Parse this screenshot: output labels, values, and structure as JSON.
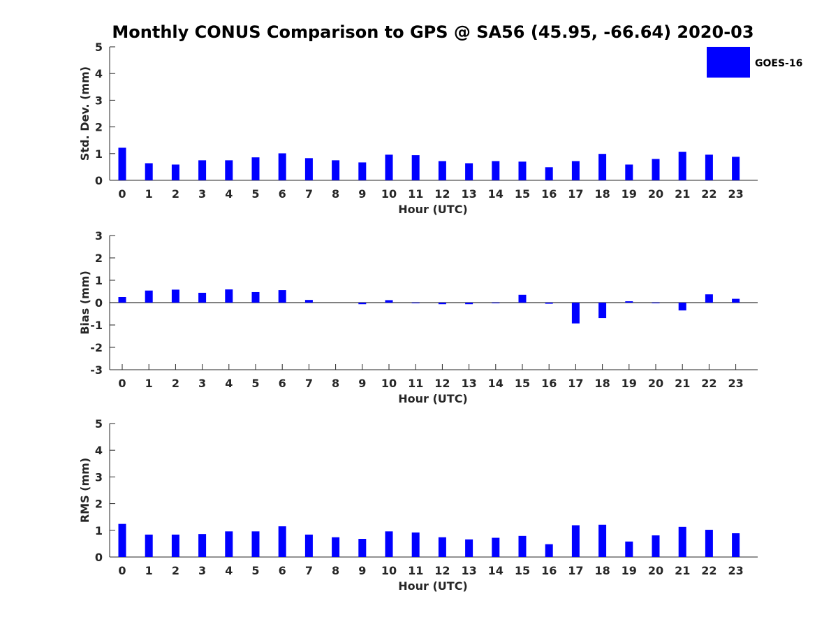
{
  "chart_data": {
    "title": "Monthly CONUS Comparison to GPS @ SA56 (45.95, -66.64) 2020-03",
    "type": "bar",
    "bar_color": "#0000ff",
    "legend": {
      "entries": [
        "GOES-16"
      ],
      "position": "top-right"
    },
    "categories": [
      "0",
      "1",
      "2",
      "3",
      "4",
      "5",
      "6",
      "7",
      "8",
      "9",
      "10",
      "11",
      "12",
      "13",
      "14",
      "15",
      "16",
      "17",
      "18",
      "19",
      "20",
      "21",
      "22",
      "23"
    ],
    "panels": [
      {
        "type": "bar",
        "xlabel": "Hour (UTC)",
        "ylabel": "Std. Dev. (mm)",
        "ylim": [
          0,
          5
        ],
        "yticks": [
          "0",
          "1",
          "2",
          "3",
          "4",
          "5"
        ],
        "series": [
          {
            "name": "GOES-16",
            "values": [
              1.22,
              0.64,
              0.59,
              0.75,
              0.75,
              0.86,
              1.01,
              0.83,
              0.75,
              0.67,
              0.96,
              0.94,
              0.72,
              0.64,
              0.72,
              0.7,
              0.49,
              0.72,
              0.99,
              0.59,
              0.8,
              1.07,
              0.96,
              0.88
            ]
          }
        ]
      },
      {
        "type": "bar",
        "xlabel": "Hour (UTC)",
        "ylabel": "Bias (mm)",
        "ylim": [
          -3,
          3
        ],
        "yticks": [
          "-3",
          "-2",
          "-1",
          "0",
          "1",
          "2",
          "3"
        ],
        "series": [
          {
            "name": "GOES-16",
            "values": [
              0.25,
              0.54,
              0.58,
              0.44,
              0.59,
              0.47,
              0.56,
              0.12,
              0.0,
              -0.07,
              0.11,
              -0.02,
              -0.07,
              -0.07,
              -0.02,
              0.35,
              -0.05,
              -0.93,
              -0.69,
              0.06,
              -0.02,
              -0.35,
              0.37,
              0.17
            ]
          }
        ]
      },
      {
        "type": "bar",
        "xlabel": "Hour (UTC)",
        "ylabel": "RMS (mm)",
        "ylim": [
          0,
          5
        ],
        "yticks": [
          "0",
          "1",
          "2",
          "3",
          "4",
          "5"
        ],
        "series": [
          {
            "name": "GOES-16",
            "values": [
              1.24,
              0.84,
              0.84,
              0.86,
              0.96,
              0.96,
              1.15,
              0.84,
              0.74,
              0.68,
              0.96,
              0.92,
              0.74,
              0.66,
              0.72,
              0.79,
              0.48,
              1.19,
              1.21,
              0.58,
              0.81,
              1.13,
              1.02,
              0.89
            ]
          }
        ]
      }
    ]
  }
}
